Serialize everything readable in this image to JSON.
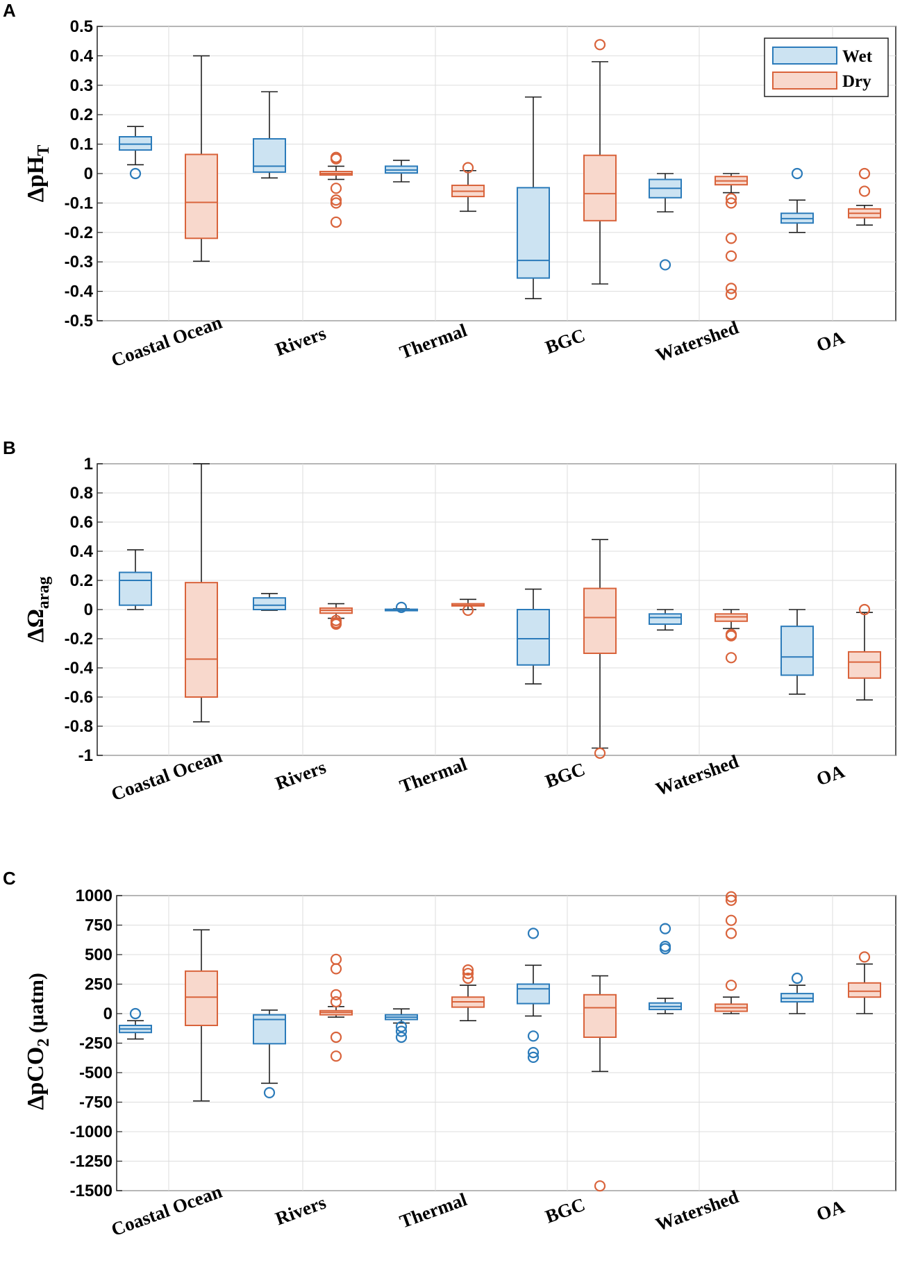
{
  "colors": {
    "wet_stroke": "#2b7bba",
    "wet_fill": "#cce3f2",
    "dry_stroke": "#d9633b",
    "dry_fill": "#f8d8cc",
    "whisker": "#222222",
    "grid": "#dddddd"
  },
  "legend": {
    "wet": "Wet",
    "dry": "Dry"
  },
  "chart_data": [
    {
      "panel": "A",
      "type": "boxplot",
      "ylabel": "ΔpH",
      "ylabel_sub": "T",
      "ylim": [
        -0.5,
        0.5
      ],
      "yticks": [
        -0.5,
        -0.4,
        -0.3,
        -0.2,
        -0.1,
        0,
        0.1,
        0.2,
        0.3,
        0.4,
        0.5
      ],
      "ytick_labels": [
        "-0.5",
        "-0.4",
        "-0.3",
        "-0.2",
        "-0.1",
        "0",
        "0.1",
        "0.2",
        "0.3",
        "0.4",
        "0.5"
      ],
      "categories": [
        "Coastal Ocean",
        "Rivers",
        "Thermal",
        "BGC",
        "Watershed",
        "OA"
      ],
      "legend": "top-right",
      "series": [
        {
          "name": "Wet",
          "boxes": [
            {
              "whislo": 0.03,
              "q1": 0.08,
              "med": 0.1,
              "q3": 0.125,
              "whishi": 0.16,
              "fliers": [
                0.0
              ]
            },
            {
              "whislo": -0.015,
              "q1": 0.005,
              "med": 0.025,
              "q3": 0.118,
              "whishi": 0.278,
              "fliers": []
            },
            {
              "whislo": -0.028,
              "q1": 0.002,
              "med": 0.012,
              "q3": 0.025,
              "whishi": 0.045,
              "fliers": []
            },
            {
              "whislo": -0.425,
              "q1": -0.355,
              "med": -0.295,
              "q3": -0.048,
              "whishi": 0.26,
              "fliers": []
            },
            {
              "whislo": -0.13,
              "q1": -0.082,
              "med": -0.05,
              "q3": -0.02,
              "whishi": 0.0,
              "fliers": [
                -0.31
              ]
            },
            {
              "whislo": -0.2,
              "q1": -0.168,
              "med": -0.153,
              "q3": -0.135,
              "whishi": -0.09,
              "fliers": [
                0.0
              ]
            }
          ]
        },
        {
          "name": "Dry",
          "boxes": [
            {
              "whislo": -0.298,
              "q1": -0.22,
              "med": -0.098,
              "q3": 0.065,
              "whishi": 0.4,
              "fliers": []
            },
            {
              "whislo": -0.02,
              "q1": -0.005,
              "med": 0.0,
              "q3": 0.007,
              "whishi": 0.025,
              "fliers": [
                0.055,
                0.05,
                -0.05,
                -0.09,
                -0.1,
                -0.165
              ]
            },
            {
              "whislo": -0.128,
              "q1": -0.078,
              "med": -0.06,
              "q3": -0.04,
              "whishi": 0.01,
              "fliers": [
                0.02
              ]
            },
            {
              "whislo": -0.375,
              "q1": -0.16,
              "med": -0.068,
              "q3": 0.062,
              "whishi": 0.38,
              "fliers": [
                0.438
              ]
            },
            {
              "whislo": -0.065,
              "q1": -0.038,
              "med": -0.025,
              "q3": -0.01,
              "whishi": 0.0,
              "fliers": [
                -0.085,
                -0.1,
                -0.22,
                -0.28,
                -0.39,
                -0.41
              ]
            },
            {
              "whislo": -0.175,
              "q1": -0.15,
              "med": -0.135,
              "q3": -0.12,
              "whishi": -0.108,
              "fliers": [
                0.0,
                -0.06
              ]
            }
          ]
        }
      ]
    },
    {
      "panel": "B",
      "type": "boxplot",
      "ylabel": "ΔΩ",
      "ylabel_sub": "arag",
      "ylim": [
        -1,
        1
      ],
      "yticks": [
        -1,
        -0.8,
        -0.6,
        -0.4,
        -0.2,
        0,
        0.2,
        0.4,
        0.6,
        0.8,
        1
      ],
      "ytick_labels": [
        "-1",
        "-0.8",
        "-0.6",
        "-0.4",
        "-0.2",
        "0",
        "0.2",
        "0.4",
        "0.6",
        "0.8",
        "1"
      ],
      "categories": [
        "Coastal Ocean",
        "Rivers",
        "Thermal",
        "BGC",
        "Watershed",
        "OA"
      ],
      "series": [
        {
          "name": "Wet",
          "boxes": [
            {
              "whislo": 0.0,
              "q1": 0.03,
              "med": 0.2,
              "q3": 0.255,
              "whishi": 0.41,
              "fliers": []
            },
            {
              "whislo": -0.005,
              "q1": 0.0,
              "med": 0.03,
              "q3": 0.08,
              "whishi": 0.11,
              "fliers": []
            },
            {
              "whislo": -0.005,
              "q1": -0.002,
              "med": 0.0,
              "q3": 0.002,
              "whishi": 0.005,
              "fliers": [
                0.015
              ]
            },
            {
              "whislo": -0.51,
              "q1": -0.38,
              "med": -0.2,
              "q3": 0.0,
              "whishi": 0.14,
              "fliers": []
            },
            {
              "whislo": -0.14,
              "q1": -0.1,
              "med": -0.055,
              "q3": -0.03,
              "whishi": 0.0,
              "fliers": []
            },
            {
              "whislo": -0.58,
              "q1": -0.45,
              "med": -0.325,
              "q3": -0.115,
              "whishi": 0.0,
              "fliers": []
            }
          ]
        },
        {
          "name": "Dry",
          "boxes": [
            {
              "whislo": -0.77,
              "q1": -0.6,
              "med": -0.34,
              "q3": 0.185,
              "whishi": 1.0,
              "fliers": []
            },
            {
              "whislo": -0.06,
              "q1": -0.025,
              "med": -0.005,
              "q3": 0.01,
              "whishi": 0.04,
              "fliers": [
                -0.075,
                -0.09,
                -0.1
              ]
            },
            {
              "whislo": 0.0,
              "q1": 0.025,
              "med": 0.03,
              "q3": 0.04,
              "whishi": 0.07,
              "fliers": [
                -0.005
              ]
            },
            {
              "whislo": -0.95,
              "q1": -0.3,
              "med": -0.055,
              "q3": 0.145,
              "whishi": 0.48,
              "fliers": [
                -0.985
              ]
            },
            {
              "whislo": -0.13,
              "q1": -0.08,
              "med": -0.05,
              "q3": -0.03,
              "whishi": 0.0,
              "fliers": [
                -0.17,
                -0.18,
                -0.33
              ]
            },
            {
              "whislo": -0.62,
              "q1": -0.47,
              "med": -0.36,
              "q3": -0.29,
              "whishi": -0.02,
              "fliers": [
                0.0
              ]
            }
          ]
        }
      ]
    },
    {
      "panel": "C",
      "type": "boxplot",
      "ylabel": "ΔpCO",
      "ylabel_sub": "2",
      "ylabel_units": " (μatm)",
      "ylim": [
        -1500,
        1000
      ],
      "yticks": [
        -1500,
        -1250,
        -1000,
        -750,
        -500,
        -250,
        0,
        250,
        500,
        750,
        1000
      ],
      "ytick_labels": [
        "-1500",
        "-1250",
        "-1000",
        "-750",
        "-500",
        "-250",
        "0",
        "250",
        "500",
        "750",
        "1000"
      ],
      "categories": [
        "Coastal Ocean",
        "Rivers",
        "Thermal",
        "BGC",
        "Watershed",
        "OA"
      ],
      "series": [
        {
          "name": "Wet",
          "boxes": [
            {
              "whislo": -215,
              "q1": -160,
              "med": -130,
              "q3": -100,
              "whishi": -60,
              "fliers": [
                0
              ]
            },
            {
              "whislo": -590,
              "q1": -255,
              "med": -50,
              "q3": -10,
              "whishi": 30,
              "fliers": [
                -670
              ]
            },
            {
              "whislo": -80,
              "q1": -50,
              "med": -30,
              "q3": -10,
              "whishi": 40,
              "fliers": [
                -110,
                -150,
                -200
              ]
            },
            {
              "whislo": -20,
              "q1": 85,
              "med": 210,
              "q3": 250,
              "whishi": 410,
              "fliers": [
                680,
                -190,
                -330,
                -370
              ]
            },
            {
              "whislo": 0,
              "q1": 35,
              "med": 60,
              "q3": 90,
              "whishi": 130,
              "fliers": [
                720,
                570,
                550
              ]
            },
            {
              "whislo": 0,
              "q1": 100,
              "med": 130,
              "q3": 170,
              "whishi": 240,
              "fliers": [
                300
              ]
            }
          ]
        },
        {
          "name": "Dry",
          "boxes": [
            {
              "whislo": -740,
              "q1": -100,
              "med": 140,
              "q3": 360,
              "whishi": 710,
              "fliers": []
            },
            {
              "whislo": -30,
              "q1": -10,
              "med": 10,
              "q3": 25,
              "whishi": 60,
              "fliers": [
                460,
                380,
                160,
                100,
                -200,
                -360
              ]
            },
            {
              "whislo": -60,
              "q1": 55,
              "med": 100,
              "q3": 140,
              "whishi": 240,
              "fliers": [
                370,
                340,
                300
              ]
            },
            {
              "whislo": -490,
              "q1": -200,
              "med": 50,
              "q3": 160,
              "whishi": 320,
              "fliers": [
                -1460
              ]
            },
            {
              "whislo": 0,
              "q1": 20,
              "med": 50,
              "q3": 80,
              "whishi": 140,
              "fliers": [
                990,
                960,
                790,
                680,
                240
              ]
            },
            {
              "whislo": 0,
              "q1": 140,
              "med": 190,
              "q3": 260,
              "whishi": 420,
              "fliers": [
                480
              ]
            }
          ]
        }
      ]
    }
  ]
}
